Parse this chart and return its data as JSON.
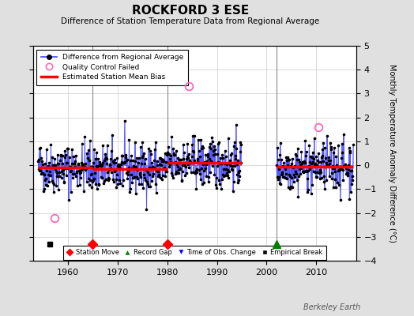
{
  "title": "ROCKFORD 3 ESE",
  "subtitle": "Difference of Station Temperature Data from Regional Average",
  "ylabel": "Monthly Temperature Anomaly Difference (°C)",
  "xlim": [
    1953,
    2018
  ],
  "ylim": [
    -4,
    5
  ],
  "yticks": [
    -4,
    -3,
    -2,
    -1,
    0,
    1,
    2,
    3,
    4,
    5
  ],
  "xticks": [
    1960,
    1970,
    1980,
    1990,
    2000,
    2010
  ],
  "background_color": "#e0e0e0",
  "plot_bg_color": "#ffffff",
  "seed": 42,
  "segment_biases": [
    {
      "start": 1954.0,
      "end": 1965.0,
      "bias": -0.1
    },
    {
      "start": 1965.0,
      "end": 1980.0,
      "bias": -0.15
    },
    {
      "start": 1980.0,
      "end": 1995.0,
      "bias": 0.1
    },
    {
      "start": 2002.0,
      "end": 2017.5,
      "bias": -0.05
    }
  ],
  "gap_periods": [
    [
      1995.0,
      2002.0
    ]
  ],
  "vertical_lines": [
    1965.0,
    1980.0,
    2002.0
  ],
  "station_moves": [
    1965.0,
    1980.0
  ],
  "record_gaps": [
    2002.0
  ],
  "empirical_breaks": [
    1956.3
  ],
  "obs_changes": [],
  "qc_failed": [
    1957.3,
    1984.3,
    2010.5
  ],
  "qc_failed_values": [
    -2.2,
    3.3,
    1.6
  ],
  "watermark": "Berkeley Earth",
  "data_color": "#4444ff",
  "bias_color": "#ff0000",
  "qc_color": "#ff69b4"
}
